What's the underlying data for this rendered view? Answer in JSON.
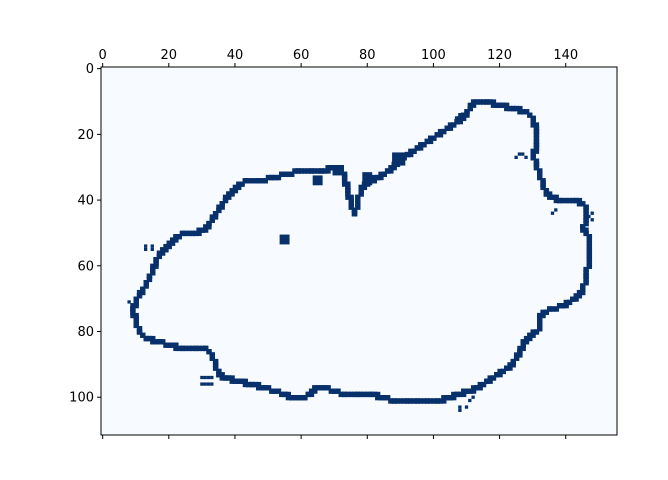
{
  "chart_data": {
    "type": "heatmap",
    "title": "",
    "xlabel": "",
    "ylabel": "",
    "x_axis_position": "top",
    "xlim": [
      -0.5,
      155.5
    ],
    "ylim": [
      111.5,
      -0.5
    ],
    "x_ticks": [
      0,
      20,
      40,
      60,
      80,
      100,
      120,
      140
    ],
    "y_ticks": [
      0,
      20,
      40,
      60,
      80,
      100
    ],
    "x_tick_labels": [
      "0",
      "20",
      "40",
      "60",
      "80",
      "100",
      "120",
      "140"
    ],
    "y_tick_labels": [
      "0",
      "20",
      "40",
      "60",
      "80",
      "100"
    ],
    "grid": false,
    "colormap": "Blues",
    "background_color": "#f7fbff",
    "foreground_color": "#08306b",
    "boundary_outline": [
      [
        9,
        73
      ],
      [
        10,
        70
      ],
      [
        12,
        67
      ],
      [
        13,
        65
      ],
      [
        14,
        63
      ],
      [
        15,
        61
      ],
      [
        16,
        58
      ],
      [
        18,
        55
      ],
      [
        20,
        53
      ],
      [
        22,
        51
      ],
      [
        24,
        50
      ],
      [
        27,
        50
      ],
      [
        30,
        49
      ],
      [
        32,
        47
      ],
      [
        34,
        44
      ],
      [
        36,
        41
      ],
      [
        38,
        38
      ],
      [
        40,
        36
      ],
      [
        43,
        34
      ],
      [
        47,
        34
      ],
      [
        51,
        33
      ],
      [
        55,
        32
      ],
      [
        59,
        31
      ],
      [
        63,
        31
      ],
      [
        66,
        31
      ],
      [
        69,
        30
      ],
      [
        72,
        30
      ],
      [
        73,
        33
      ],
      [
        74,
        37
      ],
      [
        75,
        41
      ],
      [
        76,
        44
      ],
      [
        77,
        40
      ],
      [
        78,
        36
      ],
      [
        80,
        34
      ],
      [
        83,
        33
      ],
      [
        86,
        31
      ],
      [
        88,
        29
      ],
      [
        90,
        27
      ],
      [
        92,
        26
      ],
      [
        95,
        24
      ],
      [
        98,
        22
      ],
      [
        101,
        20
      ],
      [
        104,
        18
      ],
      [
        107,
        16
      ],
      [
        110,
        13
      ],
      [
        112,
        10
      ],
      [
        116,
        10
      ],
      [
        120,
        11
      ],
      [
        124,
        12
      ],
      [
        128,
        13
      ],
      [
        130,
        15
      ],
      [
        131,
        19
      ],
      [
        131,
        23
      ],
      [
        130,
        26
      ],
      [
        131,
        29
      ],
      [
        132,
        32
      ],
      [
        133,
        35
      ],
      [
        134,
        38
      ],
      [
        138,
        40
      ],
      [
        143,
        40
      ],
      [
        146,
        42
      ],
      [
        146,
        46
      ],
      [
        145,
        48
      ],
      [
        147,
        51
      ],
      [
        147,
        57
      ],
      [
        146,
        63
      ],
      [
        145,
        67
      ],
      [
        142,
        70
      ],
      [
        139,
        72
      ],
      [
        135,
        73
      ],
      [
        132,
        75
      ],
      [
        132,
        79
      ],
      [
        129,
        81
      ],
      [
        127,
        83
      ],
      [
        126,
        86
      ],
      [
        124,
        89
      ],
      [
        122,
        91
      ],
      [
        119,
        93
      ],
      [
        116,
        95
      ],
      [
        113,
        97
      ],
      [
        110,
        98
      ],
      [
        107,
        99
      ],
      [
        104,
        100
      ],
      [
        101,
        101
      ],
      [
        98,
        101
      ],
      [
        95,
        101
      ],
      [
        92,
        101
      ],
      [
        88,
        101
      ],
      [
        85,
        100
      ],
      [
        81,
        99
      ],
      [
        77,
        99
      ],
      [
        73,
        99
      ],
      [
        70,
        98
      ],
      [
        67,
        97
      ],
      [
        64,
        97
      ],
      [
        62,
        99
      ],
      [
        60,
        100
      ],
      [
        57,
        100
      ],
      [
        55,
        99
      ],
      [
        52,
        98
      ],
      [
        49,
        97
      ],
      [
        45,
        96
      ],
      [
        41,
        95
      ],
      [
        37,
        94
      ],
      [
        35,
        93
      ],
      [
        34,
        90
      ],
      [
        33,
        87
      ],
      [
        31,
        85
      ],
      [
        28,
        85
      ],
      [
        24,
        85
      ],
      [
        20,
        84
      ],
      [
        17,
        83
      ],
      [
        13,
        82
      ],
      [
        11,
        80
      ],
      [
        10,
        77
      ]
    ],
    "filled_blocks": [
      [
        [
          54,
          56
        ],
        [
          51,
          53
        ]
      ],
      [
        [
          64,
          66
        ],
        [
          33,
          35
        ]
      ],
      [
        [
          70,
          72
        ],
        [
          30,
          32
        ]
      ],
      [
        [
          79,
          81
        ],
        [
          32,
          35
        ]
      ],
      [
        [
          88,
          91
        ],
        [
          26,
          29
        ]
      ]
    ],
    "scatter_cells": [
      [
        13,
        54
      ],
      [
        13,
        55
      ],
      [
        15,
        54
      ],
      [
        15,
        55
      ],
      [
        8,
        71
      ],
      [
        9,
        72
      ],
      [
        30,
        94
      ],
      [
        31,
        94
      ],
      [
        32,
        94
      ],
      [
        33,
        94
      ],
      [
        30,
        96
      ],
      [
        31,
        96
      ],
      [
        32,
        96
      ],
      [
        33,
        96
      ],
      [
        108,
        103
      ],
      [
        110,
        103
      ],
      [
        111,
        101
      ],
      [
        112,
        100
      ],
      [
        108,
        104
      ],
      [
        148,
        44
      ],
      [
        148,
        46
      ],
      [
        147,
        45
      ],
      [
        126,
        26
      ],
      [
        127,
        26
      ],
      [
        125,
        27
      ],
      [
        128,
        27
      ],
      [
        137,
        43
      ],
      [
        136,
        44
      ],
      [
        106,
        17
      ],
      [
        107,
        15
      ],
      [
        108,
        14
      ]
    ]
  }
}
